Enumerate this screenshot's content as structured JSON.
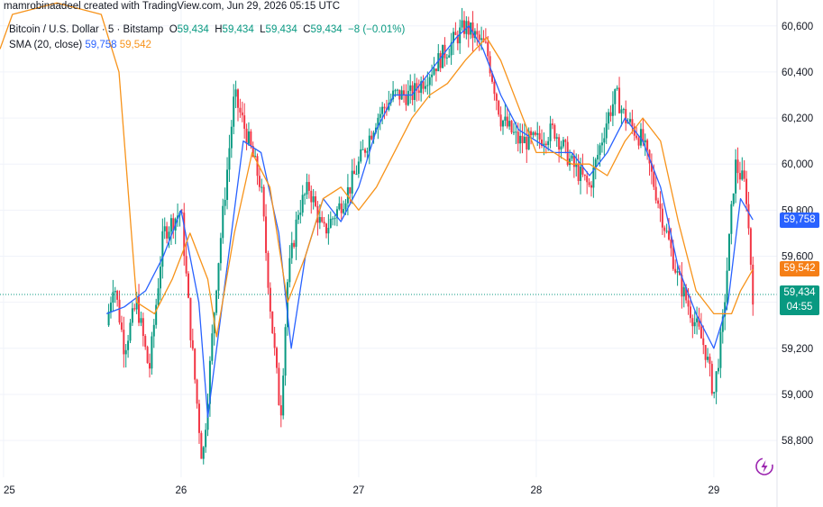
{
  "attribution": "mamrobinaadeel created with TradingView.com, Jun 29, 2026 05:15 UTC",
  "legend": {
    "symbol": "Bitcoin / U.S. Dollar · 5 · Bitstamp",
    "o_label": "O",
    "o_value": "59,434",
    "h_label": "H",
    "h_value": "59,434",
    "l_label": "L",
    "l_value": "59,434",
    "c_label": "C",
    "c_value": "59,434",
    "change": "−8 (−0.01%)",
    "sma_label": "SMA (20, close)",
    "sma_value_1": "59,758",
    "sma_value_2": "59,542"
  },
  "price_tags": {
    "sma_blue": "59,758",
    "sma_orange": "59,542",
    "last_price": "59,434",
    "countdown": "04:55"
  },
  "colors": {
    "up": "#089981",
    "down": "#f23645",
    "sma_fast": "#2962ff",
    "sma_slow": "#f7931a",
    "grid": "#f0f3fa"
  },
  "icons": [
    "tradingview-logo-icon"
  ],
  "chart_data": {
    "type": "candlestick",
    "y_ticks": [
      "58,800",
      "59,000",
      "59,200",
      "59,400",
      "59,600",
      "59,800",
      "60,000",
      "60,200",
      "60,400",
      "60,600"
    ],
    "y_tick_values": [
      58800,
      59000,
      59200,
      59400,
      59600,
      59800,
      60000,
      60200,
      60400,
      60600
    ],
    "ylim": [
      58640,
      60650
    ],
    "x_ticks": [
      "25",
      "26",
      "27",
      "28",
      "29"
    ],
    "x_tick_values": [
      25.0,
      26.0,
      27.0,
      28.0,
      29.0
    ],
    "xlim": [
      24.98,
      30.3
    ],
    "last_price": 59434,
    "grid": true,
    "series": [
      {
        "name": "Price",
        "kind": "close",
        "x": [
          25.58,
          25.62,
          25.68,
          25.75,
          25.82,
          25.9,
          26.0,
          26.05,
          26.12,
          26.2,
          26.3,
          26.38,
          26.45,
          26.5,
          26.56,
          26.6,
          26.66,
          26.72,
          26.8,
          26.88,
          26.95,
          27.0,
          27.1,
          27.2,
          27.3,
          27.4,
          27.5,
          27.6,
          27.66,
          27.72,
          27.8,
          27.9,
          28.0,
          28.1,
          28.2,
          28.3,
          28.4,
          28.45,
          28.5,
          28.6,
          28.7,
          28.8,
          28.9,
          28.95,
          29.0,
          29.05,
          29.12,
          29.18,
          29.22
        ],
        "y": [
          59300,
          59500,
          59200,
          59400,
          59100,
          59700,
          59800,
          59300,
          58700,
          59500,
          60300,
          60100,
          59900,
          59400,
          58900,
          59500,
          59800,
          59900,
          59700,
          59800,
          59900,
          60000,
          60200,
          60300,
          60300,
          60400,
          60500,
          60600,
          60550,
          60500,
          60200,
          60100,
          60100,
          60150,
          60000,
          59900,
          60200,
          60300,
          60200,
          60100,
          59800,
          59500,
          59300,
          59200,
          59000,
          59300,
          60000,
          59900,
          59434
        ]
      },
      {
        "name": "SMA (20, close)",
        "kind": "sma_fast",
        "x": [
          25.58,
          25.68,
          25.8,
          25.9,
          26.0,
          26.1,
          26.15,
          26.25,
          26.35,
          26.45,
          26.55,
          26.62,
          26.7,
          26.8,
          26.9,
          27.0,
          27.1,
          27.2,
          27.3,
          27.45,
          27.55,
          27.62,
          27.7,
          27.8,
          27.9,
          28.0,
          28.1,
          28.2,
          28.3,
          28.4,
          28.5,
          28.6,
          28.7,
          28.8,
          28.9,
          29.0,
          29.08,
          29.15,
          29.22
        ],
        "y": [
          59350,
          59380,
          59450,
          59600,
          59800,
          59400,
          58900,
          59500,
          60100,
          60050,
          59700,
          59200,
          59600,
          59850,
          59750,
          59900,
          60150,
          60300,
          60300,
          60450,
          60550,
          60600,
          60500,
          60300,
          60150,
          60100,
          60050,
          60050,
          59950,
          60050,
          60200,
          60100,
          59900,
          59550,
          59350,
          59200,
          59400,
          59850,
          59758
        ]
      },
      {
        "name": "SMA (20, close)",
        "kind": "sma_slow",
        "x": [
          24.98,
          25.05,
          25.3,
          25.55,
          25.65,
          25.75,
          25.85,
          25.95,
          26.05,
          26.15,
          26.2,
          26.3,
          26.4,
          26.5,
          26.6,
          26.7,
          26.8,
          26.9,
          27.0,
          27.1,
          27.2,
          27.3,
          27.4,
          27.5,
          27.6,
          27.72,
          27.8,
          27.9,
          28.0,
          28.1,
          28.2,
          28.3,
          28.4,
          28.5,
          28.6,
          28.7,
          28.8,
          28.9,
          29.0,
          29.1,
          29.15,
          29.22
        ],
        "y": [
          60500,
          60650,
          60700,
          60650,
          60400,
          59400,
          59350,
          59500,
          59700,
          59500,
          59250,
          59700,
          60050,
          59900,
          59400,
          59600,
          59850,
          59900,
          59800,
          59900,
          60050,
          60200,
          60300,
          60350,
          60450,
          60550,
          60450,
          60250,
          60050,
          60050,
          60000,
          60000,
          59950,
          60100,
          60200,
          60100,
          59750,
          59450,
          59350,
          59350,
          59450,
          59542
        ]
      }
    ]
  }
}
